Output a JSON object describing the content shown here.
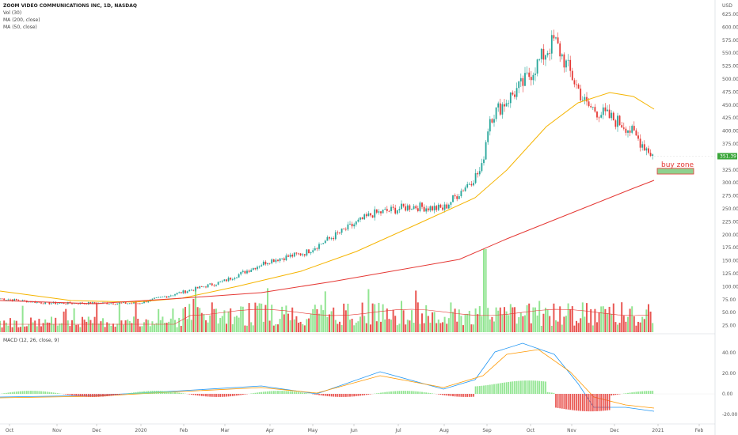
{
  "legend": {
    "symbol": "ZOOM VIDEO COMMUNICATIONS INC, 1D, NASDAQ",
    "vol": "Vol (30)",
    "ma200": "MA (200, close)",
    "ma50": "MA (50, close)"
  },
  "macd_label": "MACD (12, 26, close, 9)",
  "price_tag": "351.39",
  "annotation": "buy zone",
  "colors": {
    "up": "#26a69a",
    "up_vol": "#7fe07f",
    "down": "#e53935",
    "ma50": "#f5b400",
    "ma200": "#e53935",
    "macd": "#2196f3",
    "signal": "#ff9800",
    "tag": "#3aa63a",
    "zone_fill": "#8fd18f"
  },
  "chart_data": {
    "type": "candlestick",
    "title": "ZOOM VIDEO COMMUNICATIONS INC, 1D, NASDAQ",
    "price_axis": {
      "range": [
        0,
        650
      ],
      "top_label": "USD",
      "ticks": [
        "625.00",
        "600.00",
        "575.00",
        "550.00",
        "525.00",
        "500.00",
        "475.00",
        "450.00",
        "425.00",
        "400.00",
        "375.00",
        "325.00",
        "300.00",
        "275.00",
        "250.00",
        "225.00",
        "200.00",
        "175.00",
        "150.00",
        "125.00",
        "100.00",
        "75.00",
        "50.00",
        "25.00"
      ]
    },
    "macd_axis": {
      "range": [
        -30,
        55
      ],
      "ticks": [
        "40.00",
        "20.00",
        "0.00",
        "-20.00"
      ]
    },
    "x_labels": [
      "Oct",
      "Nov",
      "Dec",
      "2020",
      "Feb",
      "Mar",
      "Apr",
      "May",
      "Jun",
      "Jul",
      "Aug",
      "Sep",
      "Oct",
      "Nov",
      "Dec",
      "2021",
      "Feb"
    ],
    "key_points": [
      [
        "Oct 2019",
        77
      ],
      [
        "Nov 2019",
        68
      ],
      [
        "Dec 2019",
        68
      ],
      [
        "Jan 2020",
        68
      ],
      [
        "Feb 2020",
        90
      ],
      [
        "Mar 2020",
        110
      ],
      [
        "Apr 2020",
        150
      ],
      [
        "May 2020",
        165
      ],
      [
        "Jun 2020",
        240
      ],
      [
        "Jul 2020",
        255
      ],
      [
        "Aug 2020",
        250
      ],
      [
        "Sep 2020",
        325
      ],
      [
        "Sep 2020",
        425
      ],
      [
        "Oct 2020",
        490
      ],
      [
        "Oct 2020",
        575
      ],
      [
        "Nov 2020",
        450
      ],
      [
        "Dec 2020",
        410
      ],
      [
        "Dec 2020",
        351.39
      ]
    ],
    "last_price": 351.39,
    "buy_zone": [
      317,
      328
    ],
    "series": [
      {
        "name": "MA (50, close)"
      },
      {
        "name": "MA (200, close)"
      },
      {
        "name": "Vol (30)"
      },
      {
        "name": "MACD (12, 26, close, 9)"
      }
    ]
  }
}
